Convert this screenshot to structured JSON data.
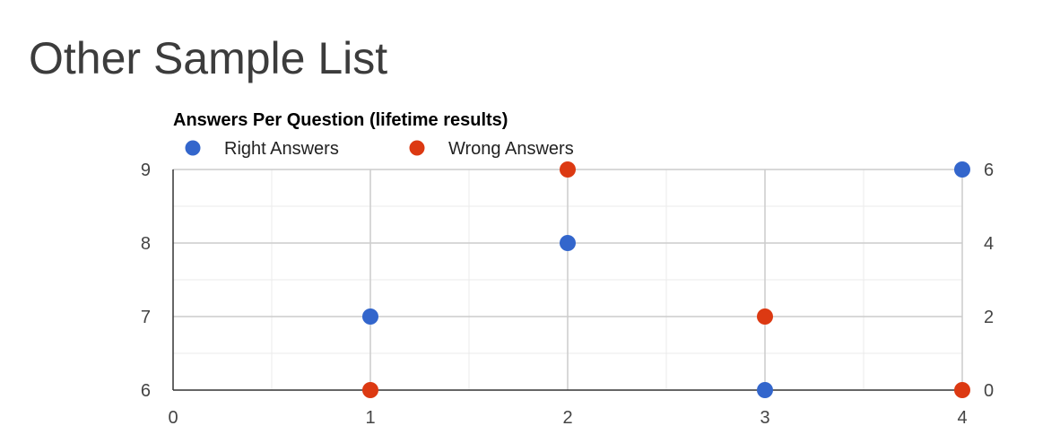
{
  "page": {
    "title": "Other Sample List"
  },
  "chart_data": {
    "type": "scatter",
    "title": "Answers Per Question (lifetime results)",
    "xlabel": "",
    "ylabel": "",
    "xlim": [
      0,
      4
    ],
    "x_ticks": [
      "0",
      "1",
      "2",
      "3",
      "4"
    ],
    "y_left": {
      "ylim": [
        6,
        9
      ],
      "ticks": [
        "6",
        "7",
        "8",
        "9"
      ]
    },
    "y_right": {
      "ylim": [
        0,
        6
      ],
      "ticks": [
        "0",
        "2",
        "4",
        "6"
      ]
    },
    "grid": true,
    "legend_position": "top-left",
    "series": [
      {
        "name": "Right Answers",
        "color": "#3366cc",
        "axis": "left",
        "x": [
          1,
          2,
          3,
          4
        ],
        "y": [
          7,
          8,
          6,
          9
        ]
      },
      {
        "name": "Wrong Answers",
        "color": "#dc3912",
        "axis": "right",
        "x": [
          1,
          2,
          3,
          4
        ],
        "y": [
          0,
          6,
          2,
          0
        ]
      }
    ]
  }
}
